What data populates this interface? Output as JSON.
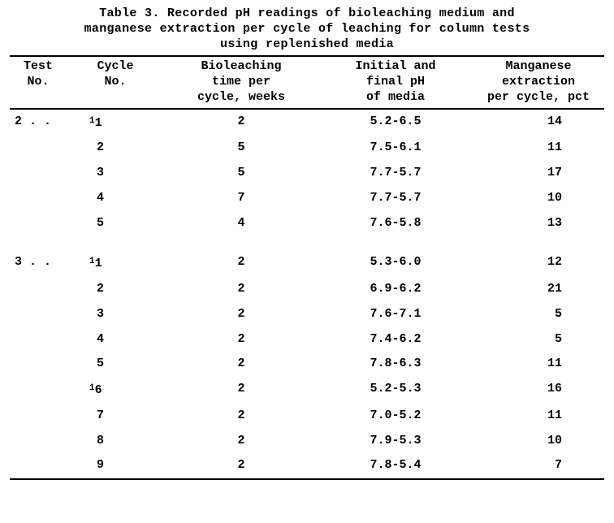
{
  "title": {
    "line1": "Table 3.  Recorded pH readings of bioleaching medium and",
    "line2": "manganese extraction per cycle of leaching for column tests",
    "line3": "using replenished media"
  },
  "columns": {
    "test": {
      "l1": "Test",
      "l2": "No.",
      "l3": ""
    },
    "cycle": {
      "l1": "Cycle",
      "l2": "No.",
      "l3": ""
    },
    "time": {
      "l1": "Bioleaching",
      "l2": "time per",
      "l3": "cycle, weeks"
    },
    "ph": {
      "l1": "Initial and",
      "l2": "final pH",
      "l3": "of media"
    },
    "mn": {
      "l1": "Manganese",
      "l2": "extraction",
      "l3": "per cycle, pct"
    }
  },
  "rows": [
    {
      "test": "2 . .",
      "sup": true,
      "cycle": "1",
      "time": "2",
      "ph": "5.2-6.5",
      "mn": "14",
      "group_start": false
    },
    {
      "test": "",
      "sup": false,
      "cycle": "2",
      "time": "5",
      "ph": "7.5-6.1",
      "mn": "11",
      "group_start": false
    },
    {
      "test": "",
      "sup": false,
      "cycle": "3",
      "time": "5",
      "ph": "7.7-5.7",
      "mn": "17",
      "group_start": false
    },
    {
      "test": "",
      "sup": false,
      "cycle": "4",
      "time": "7",
      "ph": "7.7-5.7",
      "mn": "10",
      "group_start": false
    },
    {
      "test": "",
      "sup": false,
      "cycle": "5",
      "time": "4",
      "ph": "7.6-5.8",
      "mn": "13",
      "group_start": false
    },
    {
      "test": "3 . .",
      "sup": true,
      "cycle": "1",
      "time": "2",
      "ph": "5.3-6.0",
      "mn": "12",
      "group_start": true
    },
    {
      "test": "",
      "sup": false,
      "cycle": "2",
      "time": "2",
      "ph": "6.9-6.2",
      "mn": "21",
      "group_start": false
    },
    {
      "test": "",
      "sup": false,
      "cycle": "3",
      "time": "2",
      "ph": "7.6-7.1",
      "mn": "5",
      "group_start": false
    },
    {
      "test": "",
      "sup": false,
      "cycle": "4",
      "time": "2",
      "ph": "7.4-6.2",
      "mn": "5",
      "group_start": false
    },
    {
      "test": "",
      "sup": false,
      "cycle": "5",
      "time": "2",
      "ph": "7.8-6.3",
      "mn": "11",
      "group_start": false
    },
    {
      "test": "",
      "sup": true,
      "cycle": "6",
      "time": "2",
      "ph": "5.2-5.3",
      "mn": "16",
      "group_start": false
    },
    {
      "test": "",
      "sup": false,
      "cycle": "7",
      "time": "2",
      "ph": "7.0-5.2",
      "mn": "11",
      "group_start": false
    },
    {
      "test": "",
      "sup": false,
      "cycle": "8",
      "time": "2",
      "ph": "7.9-5.3",
      "mn": "10",
      "group_start": false
    },
    {
      "test": "",
      "sup": false,
      "cycle": "9",
      "time": "2",
      "ph": "7.8-5.4",
      "mn": "7",
      "group_start": false
    }
  ]
}
